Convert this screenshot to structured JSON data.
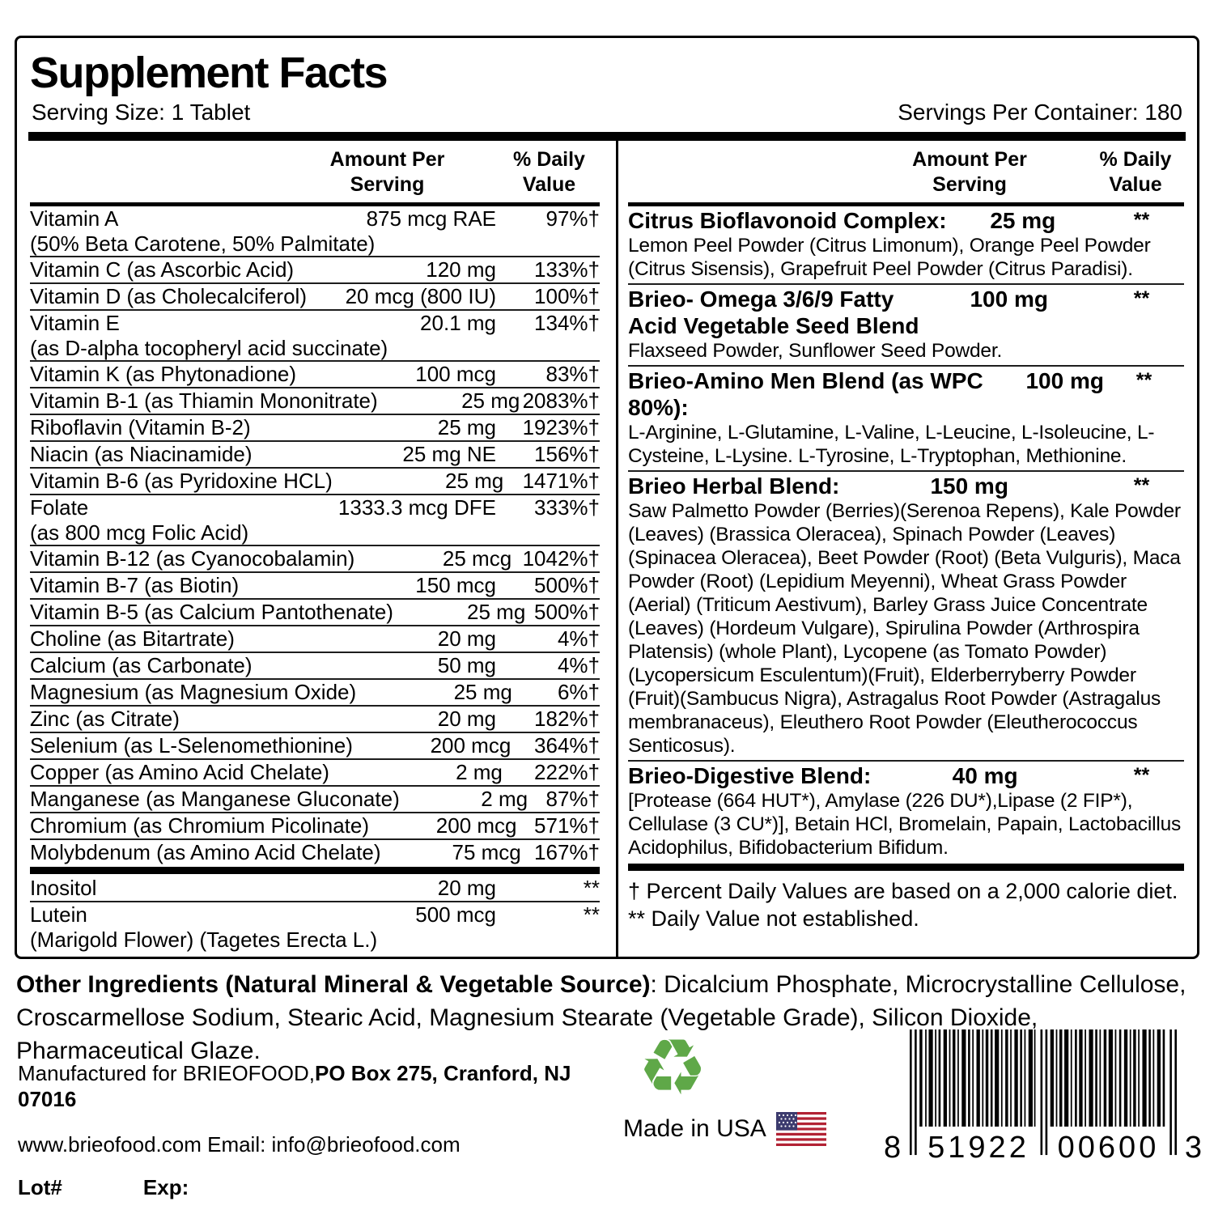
{
  "title": "Supplement Facts",
  "serving_size": "Serving Size: 1 Tablet",
  "servings_per_container": "Servings Per Container: 180",
  "headers": {
    "amount": "Amount Per\nServing",
    "dv": "% Daily\nValue"
  },
  "nutrients": [
    {
      "name": "Vitamin A",
      "amount": "875 mcg RAE",
      "dv": "97%†",
      "sub": "(50% Beta Carotene, 50% Palmitate)"
    },
    {
      "name": "Vitamin C (as Ascorbic Acid)",
      "amount": "120 mg",
      "dv": "133%†"
    },
    {
      "name": "Vitamin D (as Cholecalciferol)",
      "amount": "20 mcg (800 IU)",
      "dv": "100%†"
    },
    {
      "name": "Vitamin E",
      "amount": "20.1 mg",
      "dv": "134%†",
      "sub": "(as D-alpha tocopheryl acid succinate)"
    },
    {
      "name": "Vitamin K (as Phytonadione)",
      "amount": "100 mcg",
      "dv": "83%†"
    },
    {
      "name": "Vitamin B-1 (as Thiamin Mononitrate)",
      "amount": "25 mg",
      "dv": "2083%†"
    },
    {
      "name": "Riboflavin (Vitamin B-2)",
      "amount": "25 mg",
      "dv": "1923%†"
    },
    {
      "name": "Niacin (as Niacinamide)",
      "amount": "25 mg NE",
      "dv": "156%†"
    },
    {
      "name": "Vitamin B-6 (as Pyridoxine HCL)",
      "amount": "25 mg",
      "dv": "1471%†"
    },
    {
      "name": "Folate",
      "amount": "1333.3 mcg DFE",
      "dv": "333%†",
      "sub": "(as 800 mcg Folic Acid)"
    },
    {
      "name": "Vitamin B-12 (as Cyanocobalamin)",
      "amount": "25 mcg",
      "dv": "1042%†"
    },
    {
      "name": "Vitamin B-7 (as Biotin)",
      "amount": "150 mcg",
      "dv": "500%†"
    },
    {
      "name": "Vitamin B-5 (as Calcium Pantothenate)",
      "amount": "25 mg",
      "dv": "500%†"
    },
    {
      "name": "Choline (as Bitartrate)",
      "amount": "20 mg",
      "dv": "4%†"
    },
    {
      "name": "Calcium (as Carbonate)",
      "amount": "50 mg",
      "dv": "4%†"
    },
    {
      "name": "Magnesium (as Magnesium Oxide)",
      "amount": "25 mg",
      "dv": "6%†"
    },
    {
      "name": "Zinc (as Citrate)",
      "amount": "20 mg",
      "dv": "182%†"
    },
    {
      "name": "Selenium (as L-Selenomethionine)",
      "amount": "200 mcg",
      "dv": "364%†"
    },
    {
      "name": "Copper (as Amino Acid Chelate)",
      "amount": "2 mg",
      "dv": "222%†"
    },
    {
      "name": "Manganese (as Manganese Gluconate)",
      "amount": "2 mg",
      "dv": "87%†"
    },
    {
      "name": "Chromium (as Chromium Picolinate)",
      "amount": "200 mcg",
      "dv": "571%†"
    },
    {
      "name": "Molybdenum (as Amino Acid Chelate)",
      "amount": "75 mcg",
      "dv": "167%†"
    }
  ],
  "extra_nutrients": [
    {
      "name": "Inositol",
      "amount": "20 mg",
      "dv": "**"
    },
    {
      "name": "Lutein",
      "amount": "500 mcg",
      "dv": "**",
      "sub": "(Marigold Flower) (Tagetes Erecta L.)"
    }
  ],
  "blends": [
    {
      "name": "Citrus Bioflavonoid Complex:",
      "amount": "25 mg",
      "dv": "**",
      "desc": "Lemon Peel Powder (Citrus Limonum), Orange Peel Powder (Citrus Sisensis), Grapefruit Peel Powder (Citrus Paradisi)."
    },
    {
      "name": "Brieo- Omega 3/6/9 Fatty\nAcid Vegetable Seed Blend",
      "amount": "100 mg",
      "dv": "**",
      "desc": "Flaxseed Powder, Sunflower Seed Powder."
    },
    {
      "name": "Brieo-Amino Men Blend (as WPC 80%):",
      "amount": "100 mg",
      "dv": "**",
      "desc": "L-Arginine, L-Glutamine, L-Valine, L-Leucine, L-Isoleucine, L-Cysteine, L-Lysine. L-Tyrosine, L-Tryptophan, Methionine."
    },
    {
      "name": "Brieo Herbal Blend:",
      "amount": "150 mg",
      "dv": "**",
      "desc": "Saw Palmetto Powder (Berries)(Serenoa Repens), Kale Powder (Leaves) (Brassica Oleracea), Spinach Powder (Leaves) (Spinacea Oleracea), Beet Powder (Root) (Beta Vulguris), Maca Powder (Root) (Lepidium Meyenni), Wheat Grass Powder (Aerial) (Triticum Aestivum), Barley Grass Juice Concentrate (Leaves) (Hordeum Vulgare), Spirulina Powder (Arthrospira Platensis) (whole Plant), Lycopene (as Tomato Powder)(Lycopersicum Esculentum)(Fruit), Elderberryberry Powder (Fruit)(Sambucus Nigra), Astragalus Root Powder (Astragalus membranaceus), Eleuthero Root Powder (Eleutherococcus Senticosus)."
    },
    {
      "name": "Brieo-Digestive Blend:",
      "amount": "40 mg",
      "dv": "**",
      "desc": "[Protease (664 HUT*), Amylase (226 DU*),Lipase (2 FIP*), Cellulase (3 CU*)], Betain HCl, Bromelain, Papain, Lactobacillus Acidophilus, Bifidobacterium Bifidum."
    }
  ],
  "footnote": "† Percent Daily Values are based on a 2,000 calorie diet. ** Daily Value not established.",
  "other_ingredients": {
    "bold": "Other Ingredients (Natural Mineral & Vegetable Source)",
    "rest": ":  Dicalcium Phosphate, Microcrystalline Cellulose, Croscarmellose Sodium, Stearic Acid, Magnesium Stearate (Vegetable Grade), Silicon Dioxide, Pharmaceutical Glaze."
  },
  "footer": {
    "manufactured_regular": "Manufactured for BRIEOFOOD,",
    "manufactured_bold": "PO Box 275, Cranford, NJ 07016",
    "contact_line": "www.brieofood.com Email: info@brieofood.com",
    "lot_label": "Lot#",
    "exp_label": "Exp:",
    "made_in_usa": "Made in USA"
  },
  "icons": {
    "recycle_glyph": "♻"
  },
  "barcode": {
    "d1": "8",
    "d2": "51922",
    "d3": "00600",
    "d4": "3"
  },
  "colors": {
    "recycle_green": "#5fa848",
    "flag_red": "#b22234",
    "flag_blue": "#3c3b6e"
  }
}
